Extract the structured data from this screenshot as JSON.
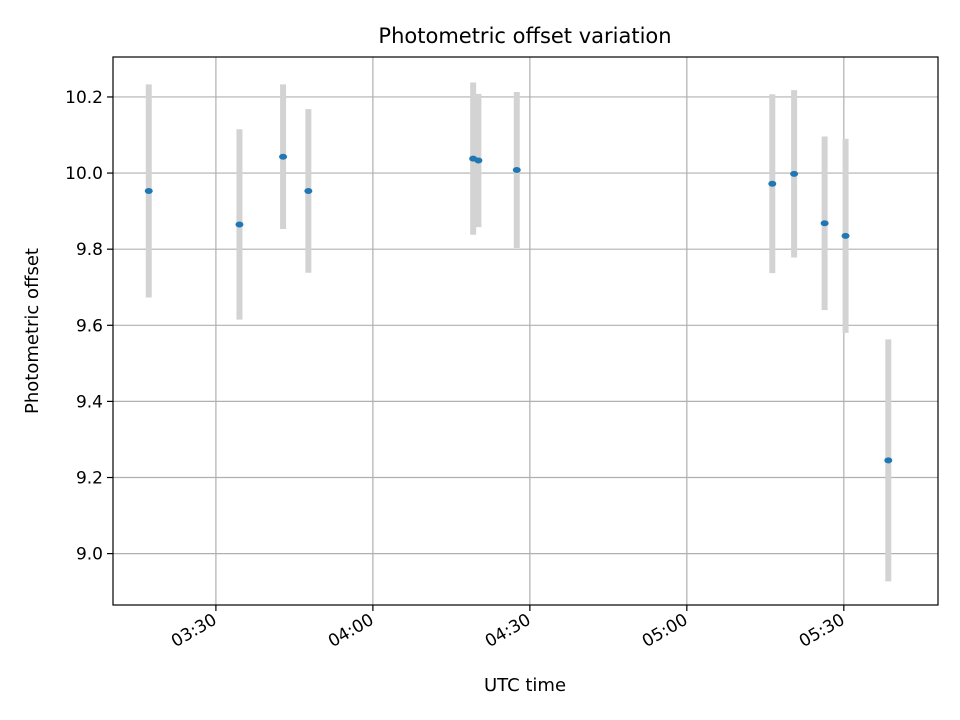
{
  "chart_data": {
    "type": "scatter",
    "title": "Photometric offset variation",
    "xlabel": "UTC time",
    "ylabel": "Photometric offset",
    "x_ticks": [
      "03:30",
      "04:00",
      "04:30",
      "05:00",
      "05:30"
    ],
    "y_ticks": [
      "9.0",
      "9.2",
      "9.4",
      "9.6",
      "9.8",
      "10.0",
      "10.2"
    ],
    "xlim": [
      "03:10:20",
      "05:48:00"
    ],
    "ylim": [
      8.865,
      10.305
    ],
    "grid": true,
    "colors": {
      "point": "#1f77b4",
      "errorbar": "#d3d3d3",
      "grid": "#b0b0b0"
    },
    "points": [
      {
        "x": "03:17:10",
        "y": 9.953,
        "yerr": 0.28
      },
      {
        "x": "03:34:30",
        "y": 9.865,
        "yerr": 0.25
      },
      {
        "x": "03:42:50",
        "y": 10.043,
        "yerr": 0.19
      },
      {
        "x": "03:47:40",
        "y": 9.953,
        "yerr": 0.215
      },
      {
        "x": "04:19:10",
        "y": 10.038,
        "yerr": 0.2
      },
      {
        "x": "04:20:10",
        "y": 10.033,
        "yerr": 0.175
      },
      {
        "x": "04:27:30",
        "y": 10.008,
        "yerr": 0.205
      },
      {
        "x": "05:16:20",
        "y": 9.972,
        "yerr": 0.235
      },
      {
        "x": "05:20:30",
        "y": 9.998,
        "yerr": 0.22
      },
      {
        "x": "05:26:20",
        "y": 9.868,
        "yerr": 0.228
      },
      {
        "x": "05:30:20",
        "y": 9.835,
        "yerr": 0.255
      },
      {
        "x": "05:38:30",
        "y": 9.245,
        "yerr": 0.318
      }
    ]
  }
}
